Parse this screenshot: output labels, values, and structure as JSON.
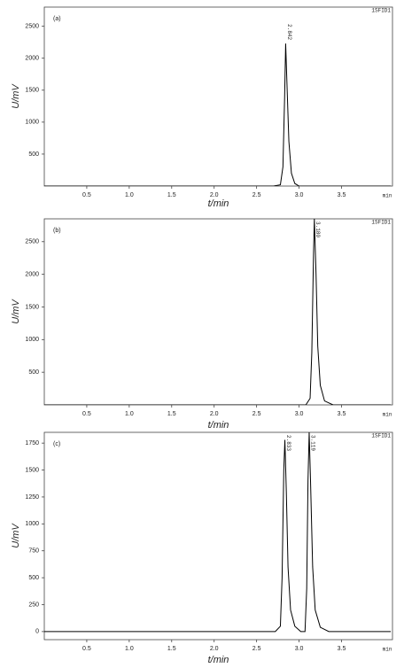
{
  "chart_data": [
    {
      "type": "line",
      "panel_label": "(a)",
      "detector_label": "1SFID1",
      "x_label": "t/min",
      "y_label": "U/mV",
      "x_unit": "min",
      "color": "#000000",
      "x": [
        0,
        2.7,
        2.78,
        2.81,
        2.83,
        2.842,
        2.86,
        2.88,
        2.91,
        2.95,
        3.0,
        4.08
      ],
      "values": [
        0,
        0,
        20,
        300,
        1400,
        2230,
        1500,
        700,
        200,
        40,
        0,
        0
      ],
      "annotations": [
        {
          "text": "2.842",
          "x": 2.842
        }
      ],
      "xlim": [
        0,
        4.1
      ],
      "ylim": [
        0,
        2800
      ],
      "xticks": [
        0.5,
        {
          "value": 1,
          "label": "1.0"
        },
        1.5,
        {
          "value": 2,
          "label": "2.0"
        },
        2.5,
        {
          "value": 3,
          "label": "3.0"
        },
        3.5
      ],
      "yticks": [
        500,
        1000,
        1500,
        2000,
        2500
      ]
    },
    {
      "type": "line",
      "panel_label": "(b)",
      "detector_label": "1SFID1",
      "x_label": "t/min",
      "y_label": "U/mV",
      "x_unit": "min",
      "color": "#000000",
      "x": [
        0,
        3.08,
        3.13,
        3.15,
        3.17,
        3.18,
        3.2,
        3.22,
        3.25,
        3.3,
        3.4,
        4.08
      ],
      "values": [
        0,
        0,
        100,
        800,
        2300,
        2850,
        2000,
        900,
        300,
        60,
        0,
        0
      ],
      "annotations": [
        {
          "text": "3.180",
          "x": 3.18
        }
      ],
      "xlim": [
        0,
        4.1
      ],
      "ylim": [
        0,
        2850
      ],
      "xticks": [
        0.5,
        {
          "value": 1,
          "label": "1.0"
        },
        1.5,
        {
          "value": 2,
          "label": "2.0"
        },
        2.5,
        {
          "value": 3,
          "label": "3.0"
        },
        3.5
      ],
      "yticks": [
        500,
        1000,
        1500,
        2000,
        2500
      ]
    },
    {
      "type": "line",
      "panel_label": "(c)",
      "detector_label": "1SFID1",
      "x_label": "t/min",
      "y_label": "U/mV",
      "x_unit": "min",
      "color": "#000000",
      "x": [
        0,
        2.72,
        2.78,
        2.8,
        2.82,
        2.833,
        2.85,
        2.87,
        2.9,
        2.95,
        3.02,
        3.07,
        3.09,
        3.105,
        3.119,
        3.135,
        3.16,
        3.19,
        3.25,
        3.35,
        4.08
      ],
      "values": [
        0,
        0,
        50,
        500,
        1500,
        1780,
        1300,
        600,
        200,
        50,
        0,
        0,
        400,
        1400,
        1850,
        1400,
        600,
        200,
        40,
        0,
        0
      ],
      "annotations": [
        {
          "text": "2.833",
          "x": 2.833
        },
        {
          "text": "3.119",
          "x": 3.119
        }
      ],
      "xlim": [
        0,
        4.1
      ],
      "ylim": [
        -75,
        1850
      ],
      "xticks": [
        0.5,
        {
          "value": 1,
          "label": "1.0"
        },
        1.5,
        {
          "value": 2,
          "label": "2.0"
        },
        2.5,
        {
          "value": 3,
          "label": "3.0"
        },
        3.5
      ],
      "yticks": [
        0,
        250,
        500,
        750,
        1000,
        1250,
        1500,
        1750
      ]
    }
  ]
}
